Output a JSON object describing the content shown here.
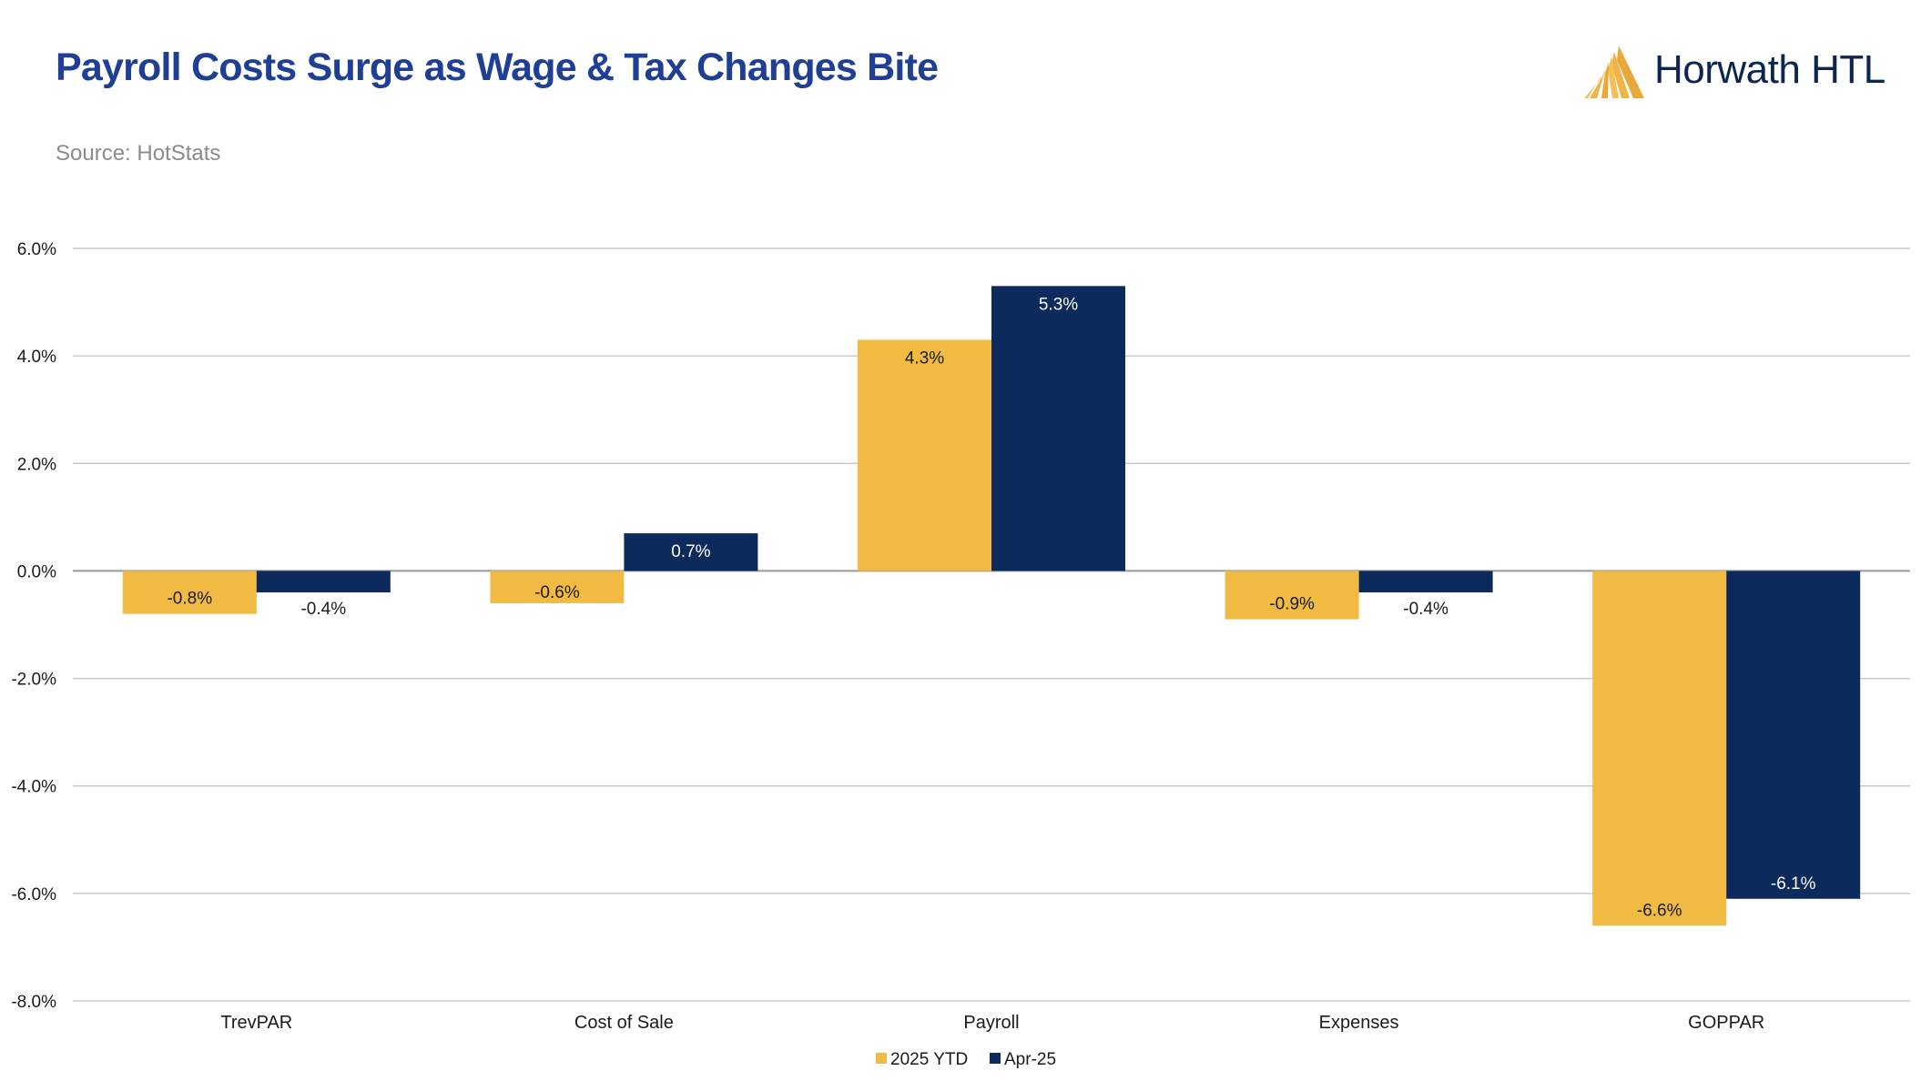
{
  "header": {
    "title": "Payroll Costs Surge as Wage & Tax Changes Bite",
    "source": "Source: HotStats",
    "logo_text": "Horwath HTL"
  },
  "colors": {
    "title": "#1f3f96",
    "ytd": "#f1ba43",
    "apr": "#0d2a5c",
    "grid": "#c9c9c9",
    "source": "#8b8b8b"
  },
  "chart_data": {
    "type": "bar",
    "categories": [
      "TrevPAR",
      "Cost of Sale",
      "Payroll",
      "Expenses",
      "GOPPAR"
    ],
    "series": [
      {
        "name": "2025 YTD",
        "values": [
          -0.8,
          -0.6,
          4.3,
          -0.9,
          -6.6
        ],
        "labels": [
          "-0.8%",
          "-0.6%",
          "4.3%",
          "-0.9%",
          "-6.6%"
        ]
      },
      {
        "name": "Apr-25",
        "values": [
          -0.4,
          0.7,
          5.3,
          -0.4,
          -6.1
        ],
        "labels": [
          "-0.4%",
          "0.7%",
          "5.3%",
          "-0.4%",
          "-6.1%"
        ]
      }
    ],
    "ylim": [
      -8.0,
      6.0
    ],
    "yticks": [
      6.0,
      4.0,
      2.0,
      0.0,
      -2.0,
      -4.0,
      -6.0,
      -8.0
    ],
    "ytick_labels": [
      "6.0%",
      "4.0%",
      "2.0%",
      "0.0%",
      "-2.0%",
      "-4.0%",
      "-6.0%",
      "-8.0%"
    ],
    "grid": true,
    "legend_position": "bottom-center",
    "xlabel": "",
    "ylabel": ""
  }
}
